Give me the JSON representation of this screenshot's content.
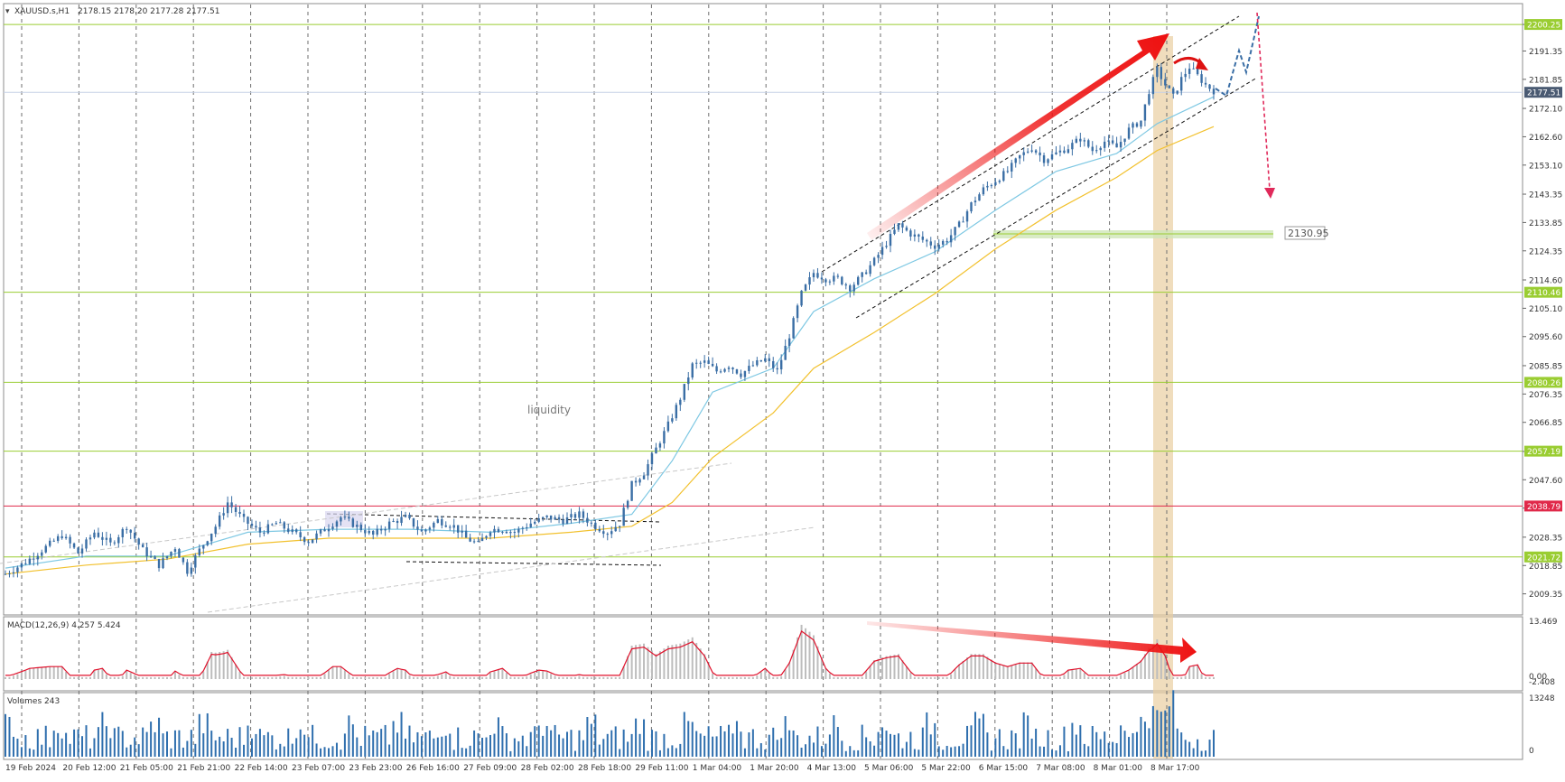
{
  "header": {
    "symbol_label": "XAUUSD.s,H1",
    "ohlc_text": "2178.15 2178.20 2177.28 2177.51"
  },
  "annotations": {
    "liquidity": "liquidity",
    "target_level": "2130.95"
  },
  "colors": {
    "candle": "#3a6ea5",
    "ema_fast": "#7ec8e3",
    "ema_slow": "#f2c12e",
    "level_line": "#9acd32",
    "red_level": "#e0294a",
    "arrow_red": "#ee1111",
    "volume_bar": "#2f6fae",
    "macd_hist": "#bdbdbd",
    "macd_signal": "#e0112b",
    "highlight_band": "#e9cfa1"
  },
  "chart_data": [
    {
      "type": "candlestick",
      "title": "XAUUSD.s,H1",
      "ylim": [
        2005,
        2203
      ],
      "price_ticks": [
        "2200.25",
        "2191.35",
        "2181.85",
        "2172.10",
        "2162.60",
        "2153.10",
        "2143.35",
        "2133.85",
        "2124.35",
        "2114.60",
        "2105.10",
        "2095.60",
        "2085.85",
        "2076.35",
        "2066.85",
        "2057.10",
        "2047.60",
        "2038.10",
        "2028.35",
        "2018.85",
        "2009.35"
      ],
      "horizontal_levels": [
        {
          "label": "2200.25",
          "value": 2200.25,
          "color": "#9acd32"
        },
        {
          "label": "2110.46",
          "value": 2110.46,
          "color": "#9acd32"
        },
        {
          "label": "2080.26",
          "value": 2080.26,
          "color": "#9acd32"
        },
        {
          "label": "2057.19",
          "value": 2057.19,
          "color": "#9acd32"
        },
        {
          "label": "2038.79",
          "value": 2038.79,
          "color": "#e0294a"
        },
        {
          "label": "2021.72",
          "value": 2021.72,
          "color": "#9acd32"
        }
      ],
      "current_price": {
        "label": "2177.51",
        "value": 2177.51
      },
      "x_labels": [
        "19 Feb 2024",
        "20 Feb 12:00",
        "21 Feb 05:00",
        "21 Feb 21:00",
        "22 Feb 14:00",
        "23 Feb 07:00",
        "23 Feb 23:00",
        "26 Feb 16:00",
        "27 Feb 09:00",
        "28 Feb 02:00",
        "28 Feb 18:00",
        "29 Feb 11:00",
        "1 Mar 04:00",
        "1 Mar 20:00",
        "4 Mar 13:00",
        "5 Mar 06:00",
        "5 Mar 22:00",
        "6 Mar 15:00",
        "7 Mar 08:00",
        "8 Mar 01:00",
        "8 Mar 17:00"
      ],
      "close_path": [
        [
          0,
          2016
        ],
        [
          10,
          2020
        ],
        [
          20,
          2025
        ],
        [
          28,
          2029
        ],
        [
          36,
          2023
        ],
        [
          44,
          2030
        ],
        [
          52,
          2026
        ],
        [
          60,
          2032
        ],
        [
          68,
          2024
        ],
        [
          76,
          2019
        ],
        [
          84,
          2025
        ],
        [
          90,
          2017
        ],
        [
          96,
          2024
        ],
        [
          104,
          2032
        ],
        [
          110,
          2040
        ],
        [
          118,
          2034
        ],
        [
          126,
          2030
        ],
        [
          134,
          2033
        ],
        [
          142,
          2030
        ],
        [
          150,
          2027
        ],
        [
          158,
          2031
        ],
        [
          166,
          2035
        ],
        [
          174,
          2032
        ],
        [
          182,
          2029
        ],
        [
          190,
          2033
        ],
        [
          198,
          2035
        ],
        [
          206,
          2030
        ],
        [
          214,
          2034
        ],
        [
          222,
          2032
        ],
        [
          228,
          2028
        ],
        [
          234,
          2026
        ],
        [
          240,
          2031
        ],
        [
          246,
          2031
        ],
        [
          252,
          2030
        ],
        [
          260,
          2033
        ],
        [
          268,
          2035
        ],
        [
          276,
          2034
        ],
        [
          284,
          2036
        ],
        [
          292,
          2032
        ],
        [
          298,
          2030
        ],
        [
          304,
          2033
        ],
        [
          310,
          2046
        ],
        [
          316,
          2050
        ],
        [
          322,
          2058
        ],
        [
          328,
          2066
        ],
        [
          334,
          2075
        ],
        [
          340,
          2086
        ],
        [
          346,
          2087
        ],
        [
          352,
          2084
        ],
        [
          358,
          2086
        ],
        [
          364,
          2083
        ],
        [
          370,
          2086
        ],
        [
          376,
          2088
        ],
        [
          382,
          2084
        ],
        [
          388,
          2096
        ],
        [
          394,
          2110
        ],
        [
          400,
          2117
        ],
        [
          406,
          2115
        ],
        [
          412,
          2115
        ],
        [
          418,
          2112
        ],
        [
          424,
          2116
        ],
        [
          430,
          2121
        ],
        [
          436,
          2127
        ],
        [
          442,
          2133
        ],
        [
          448,
          2130
        ],
        [
          454,
          2128
        ],
        [
          460,
          2126
        ],
        [
          466,
          2128
        ],
        [
          472,
          2133
        ],
        [
          478,
          2140
        ],
        [
          484,
          2145
        ],
        [
          490,
          2148
        ],
        [
          496,
          2151
        ],
        [
          502,
          2156
        ],
        [
          508,
          2159
        ],
        [
          514,
          2155
        ],
        [
          520,
          2157
        ],
        [
          526,
          2159
        ],
        [
          532,
          2162
        ],
        [
          538,
          2158
        ],
        [
          544,
          2161
        ],
        [
          550,
          2159
        ],
        [
          556,
          2165
        ],
        [
          562,
          2168
        ],
        [
          566,
          2178
        ],
        [
          570,
          2185
        ],
        [
          574,
          2180
        ],
        [
          578,
          2176
        ],
        [
          582,
          2182
        ],
        [
          586,
          2186
        ],
        [
          590,
          2183
        ],
        [
          594,
          2180
        ],
        [
          598,
          2178
        ]
      ],
      "ema_fast_path": [
        [
          0,
          2018
        ],
        [
          40,
          2022
        ],
        [
          80,
          2022
        ],
        [
          120,
          2030
        ],
        [
          160,
          2031
        ],
        [
          200,
          2031
        ],
        [
          240,
          2030
        ],
        [
          280,
          2033
        ],
        [
          310,
          2036
        ],
        [
          330,
          2054
        ],
        [
          350,
          2077
        ],
        [
          380,
          2085
        ],
        [
          400,
          2104
        ],
        [
          430,
          2115
        ],
        [
          460,
          2124
        ],
        [
          490,
          2138
        ],
        [
          520,
          2151
        ],
        [
          550,
          2157
        ],
        [
          570,
          2167
        ],
        [
          598,
          2176
        ]
      ],
      "ema_slow_path": [
        [
          0,
          2016
        ],
        [
          40,
          2019
        ],
        [
          80,
          2021
        ],
        [
          120,
          2026
        ],
        [
          160,
          2028
        ],
        [
          200,
          2028
        ],
        [
          240,
          2028
        ],
        [
          280,
          2030
        ],
        [
          310,
          2032
        ],
        [
          330,
          2040
        ],
        [
          350,
          2055
        ],
        [
          380,
          2070
        ],
        [
          400,
          2085
        ],
        [
          430,
          2097
        ],
        [
          460,
          2110
        ],
        [
          490,
          2125
        ],
        [
          520,
          2138
        ],
        [
          550,
          2149
        ],
        [
          570,
          2158
        ],
        [
          598,
          2166
        ]
      ]
    },
    {
      "type": "bar",
      "title": "MACD(12,26,9) 4.257 5.424",
      "label": "MACD(12,26,9)",
      "values_text": "4.257 5.424",
      "y_ticks": [
        "13.469",
        "0.00",
        "-2.408"
      ],
      "ylim": [
        -2.408,
        13.469
      ]
    },
    {
      "type": "bar",
      "title": "Volumes 243",
      "label": "Volumes 243",
      "y_ticks": [
        "13248",
        "0"
      ],
      "ylim": [
        0,
        13248
      ]
    }
  ]
}
